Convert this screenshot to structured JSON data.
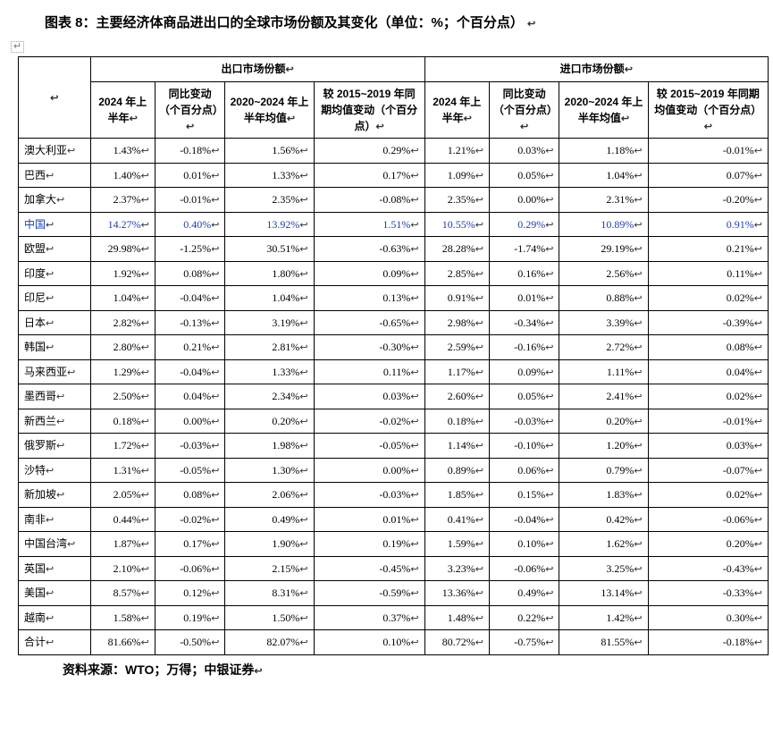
{
  "title": "图表 8：主要经济体商品进出口的全球市场份额及其变化（单位：%；个百分点）",
  "endmark": "↩",
  "anchor": "↵",
  "source": "资料来源：WTO；万得；中银证券",
  "cj": "↩",
  "header": {
    "blank": "",
    "export_group": "出口市场份额",
    "import_group": "进口市场份额",
    "c1": "2024 年上半年",
    "c2": "同比变动（个百分点）",
    "c3": "2020~2024 年上半年均值",
    "c4": "较 2015~2019 年同期均值变动（个百分点）",
    "c5": "2024 年上半年",
    "c6": "同比变动（个百分点）",
    "c7": "2020~2024 年上半年均值",
    "c8": "较 2015~2019 年同期均值变动（个百分点）"
  },
  "rows": [
    {
      "label": "澳大利亚",
      "hl": false,
      "v": [
        "1.43%",
        "-0.18%",
        "1.56%",
        "0.29%",
        "1.21%",
        "0.03%",
        "1.18%",
        "-0.01%"
      ]
    },
    {
      "label": "巴西",
      "hl": false,
      "v": [
        "1.40%",
        "0.01%",
        "1.33%",
        "0.17%",
        "1.09%",
        "0.05%",
        "1.04%",
        "0.07%"
      ]
    },
    {
      "label": "加拿大",
      "hl": false,
      "v": [
        "2.37%",
        "-0.01%",
        "2.35%",
        "-0.08%",
        "2.35%",
        "0.00%",
        "2.31%",
        "-0.20%"
      ]
    },
    {
      "label": "中国",
      "hl": true,
      "v": [
        "14.27%",
        "0.40%",
        "13.92%",
        "1.51%",
        "10.55%",
        "0.29%",
        "10.89%",
        "0.91%"
      ]
    },
    {
      "label": "欧盟",
      "hl": false,
      "v": [
        "29.98%",
        "-1.25%",
        "30.51%",
        "-0.63%",
        "28.28%",
        "-1.74%",
        "29.19%",
        "0.21%"
      ]
    },
    {
      "label": "印度",
      "hl": false,
      "v": [
        "1.92%",
        "0.08%",
        "1.80%",
        "0.09%",
        "2.85%",
        "0.16%",
        "2.56%",
        "0.11%"
      ]
    },
    {
      "label": "印尼",
      "hl": false,
      "v": [
        "1.04%",
        "-0.04%",
        "1.04%",
        "0.13%",
        "0.91%",
        "0.01%",
        "0.88%",
        "0.02%"
      ]
    },
    {
      "label": "日本",
      "hl": false,
      "v": [
        "2.82%",
        "-0.13%",
        "3.19%",
        "-0.65%",
        "2.98%",
        "-0.34%",
        "3.39%",
        "-0.39%"
      ]
    },
    {
      "label": "韩国",
      "hl": false,
      "v": [
        "2.80%",
        "0.21%",
        "2.81%",
        "-0.30%",
        "2.59%",
        "-0.16%",
        "2.72%",
        "0.08%"
      ]
    },
    {
      "label": "马来西亚",
      "hl": false,
      "v": [
        "1.29%",
        "-0.04%",
        "1.33%",
        "0.11%",
        "1.17%",
        "0.09%",
        "1.11%",
        "0.04%"
      ]
    },
    {
      "label": "墨西哥",
      "hl": false,
      "v": [
        "2.50%",
        "0.04%",
        "2.34%",
        "0.03%",
        "2.60%",
        "0.05%",
        "2.41%",
        "0.02%"
      ]
    },
    {
      "label": "新西兰",
      "hl": false,
      "v": [
        "0.18%",
        "0.00%",
        "0.20%",
        "-0.02%",
        "0.18%",
        "-0.03%",
        "0.20%",
        "-0.01%"
      ]
    },
    {
      "label": "俄罗斯",
      "hl": false,
      "v": [
        "1.72%",
        "-0.03%",
        "1.98%",
        "-0.05%",
        "1.14%",
        "-0.10%",
        "1.20%",
        "0.03%"
      ]
    },
    {
      "label": "沙特",
      "hl": false,
      "v": [
        "1.31%",
        "-0.05%",
        "1.30%",
        "0.00%",
        "0.89%",
        "0.06%",
        "0.79%",
        "-0.07%"
      ]
    },
    {
      "label": "新加坡",
      "hl": false,
      "v": [
        "2.05%",
        "0.08%",
        "2.06%",
        "-0.03%",
        "1.85%",
        "0.15%",
        "1.83%",
        "0.02%"
      ]
    },
    {
      "label": "南非",
      "hl": false,
      "v": [
        "0.44%",
        "-0.02%",
        "0.49%",
        "0.01%",
        "0.41%",
        "-0.04%",
        "0.42%",
        "-0.06%"
      ]
    },
    {
      "label": "中国台湾",
      "hl": false,
      "v": [
        "1.87%",
        "0.17%",
        "1.90%",
        "0.19%",
        "1.59%",
        "0.10%",
        "1.62%",
        "0.20%"
      ]
    },
    {
      "label": "英国",
      "hl": false,
      "v": [
        "2.10%",
        "-0.06%",
        "2.15%",
        "-0.45%",
        "3.23%",
        "-0.06%",
        "3.25%",
        "-0.43%"
      ]
    },
    {
      "label": "美国",
      "hl": false,
      "v": [
        "8.57%",
        "0.12%",
        "8.31%",
        "-0.59%",
        "13.36%",
        "0.49%",
        "13.14%",
        "-0.33%"
      ]
    },
    {
      "label": "越南",
      "hl": false,
      "v": [
        "1.58%",
        "0.19%",
        "1.50%",
        "0.37%",
        "1.48%",
        "0.22%",
        "1.42%",
        "0.30%"
      ]
    },
    {
      "label": "合计",
      "hl": false,
      "v": [
        "81.66%",
        "-0.50%",
        "82.07%",
        "0.10%",
        "80.72%",
        "-0.75%",
        "81.55%",
        "-0.18%"
      ]
    }
  ]
}
